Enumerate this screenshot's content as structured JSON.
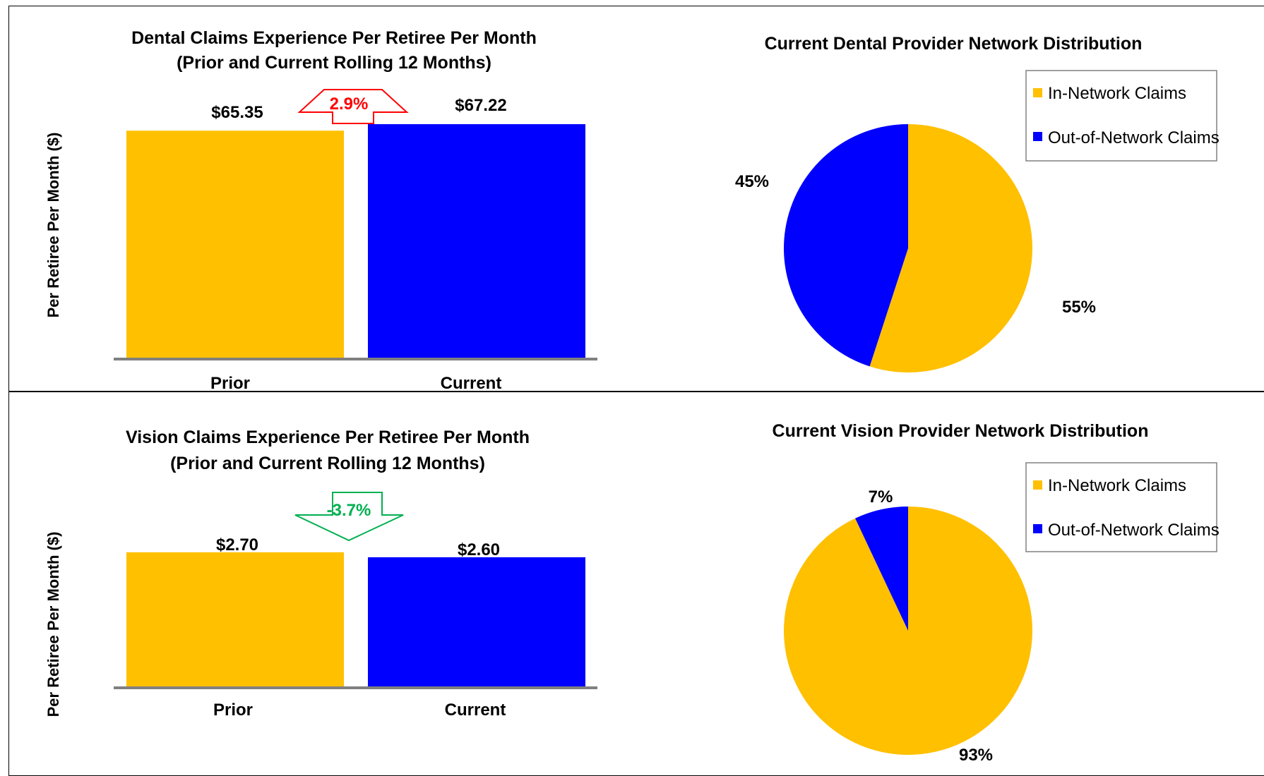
{
  "chart_data": [
    {
      "type": "bar",
      "title": "Dental Claims Experience Per Retiree Per Month",
      "subtitle": "(Prior and Current Rolling 12 Months)",
      "ylabel": "Per Retiree Per Month ($)",
      "categories": [
        "Prior",
        "Current"
      ],
      "values": [
        65.35,
        67.22
      ],
      "value_labels": [
        "$65.35",
        "$67.22"
      ],
      "ylim": [
        0,
        67.22
      ],
      "colors": [
        "#FFC000",
        "#0000FF"
      ],
      "change": {
        "label": "2.9%",
        "direction": "up",
        "color": "#FF0000"
      }
    },
    {
      "type": "pie",
      "title": "Current Dental Provider Network Distribution",
      "labels": [
        "In-Network Claims",
        "Out-of-Network Claims"
      ],
      "values": [
        55,
        45
      ],
      "value_labels": [
        "55%",
        "45%"
      ],
      "colors": [
        "#FFC000",
        "#0000FF"
      ],
      "legend": "top-right"
    },
    {
      "type": "bar",
      "title": "Vision Claims Experience Per Retiree Per Month",
      "subtitle": "(Prior and Current Rolling 12 Months)",
      "ylabel": "Per Retiree Per Month ($)",
      "categories": [
        "Prior",
        "Current"
      ],
      "values": [
        2.7,
        2.6
      ],
      "value_labels": [
        "$2.70",
        "$2.60"
      ],
      "ylim": [
        0,
        5.0
      ],
      "colors": [
        "#FFC000",
        "#0000FF"
      ],
      "change": {
        "label": "-3.7%",
        "direction": "down",
        "color": "#00B050"
      }
    },
    {
      "type": "pie",
      "title": "Current Vision Provider Network Distribution",
      "labels": [
        "In-Network Claims",
        "Out-of-Network Claims"
      ],
      "values": [
        93,
        7
      ],
      "value_labels": [
        "93%",
        "7%"
      ],
      "colors": [
        "#FFC000",
        "#0000FF"
      ],
      "legend": "top-right"
    }
  ]
}
